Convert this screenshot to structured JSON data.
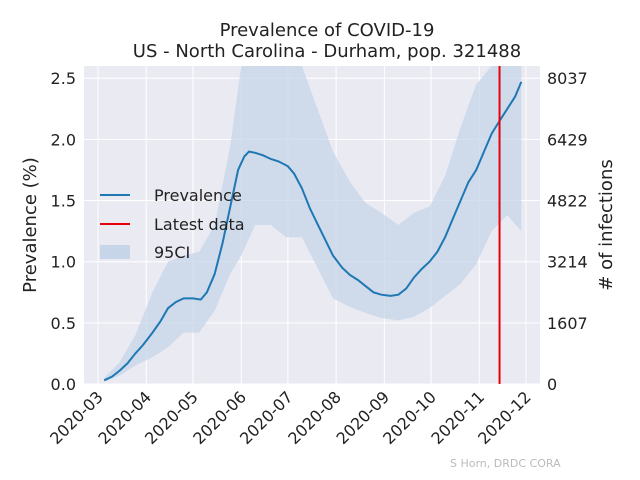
{
  "chart_data": {
    "type": "line",
    "title": "Prevalence of COVID-19",
    "subtitle": "US - North Carolina - Durham, pop. 321488",
    "ylabel": "Prevalence (%)",
    "y2label": "# of infections",
    "ylim": [
      0,
      2.6
    ],
    "yticks": [
      "0.0",
      "0.5",
      "1.0",
      "1.5",
      "2.0",
      "2.5"
    ],
    "y2ticks": [
      "0",
      "1607",
      "3214",
      "4822",
      "6429",
      "8037"
    ],
    "xticks": [
      "2020-03",
      "2020-04",
      "2020-05",
      "2020-06",
      "2020-07",
      "2020-08",
      "2020-09",
      "2020-10",
      "2020-11",
      "2020-12"
    ],
    "grid": true,
    "legend": {
      "placement": "center-left",
      "entries": [
        "Prevalence",
        "Latest data",
        "95CI"
      ]
    },
    "latest_data": "2020-11-14",
    "credit": "S Horn, DRDC CORA",
    "colors": {
      "line": "#1f77b4",
      "latest": "#e8000b",
      "ci": "#c6d6e8",
      "bg": "#eaeaf2",
      "grid": "#ffffff"
    },
    "series": [
      {
        "name": "Prevalence",
        "x": [
          "2020-03-05",
          "2020-03-10",
          "2020-03-15",
          "2020-03-20",
          "2020-03-25",
          "2020-03-30",
          "2020-04-05",
          "2020-04-10",
          "2020-04-15",
          "2020-04-20",
          "2020-04-25",
          "2020-05-01",
          "2020-05-06",
          "2020-05-10",
          "2020-05-15",
          "2020-05-20",
          "2020-05-25",
          "2020-05-30",
          "2020-06-03",
          "2020-06-06",
          "2020-06-10",
          "2020-06-15",
          "2020-06-20",
          "2020-06-25",
          "2020-07-01",
          "2020-07-05",
          "2020-07-10",
          "2020-07-15",
          "2020-07-20",
          "2020-07-25",
          "2020-07-30",
          "2020-08-05",
          "2020-08-10",
          "2020-08-15",
          "2020-08-20",
          "2020-08-25",
          "2020-08-30",
          "2020-09-05",
          "2020-09-10",
          "2020-09-15",
          "2020-09-20",
          "2020-09-25",
          "2020-09-30",
          "2020-10-05",
          "2020-10-10",
          "2020-10-15",
          "2020-10-20",
          "2020-10-25",
          "2020-10-30",
          "2020-11-04",
          "2020-11-09",
          "2020-11-14",
          "2020-11-19",
          "2020-11-24",
          "2020-11-28"
        ],
        "y": [
          0.03,
          0.06,
          0.11,
          0.17,
          0.25,
          0.32,
          0.42,
          0.51,
          0.62,
          0.67,
          0.7,
          0.7,
          0.69,
          0.75,
          0.9,
          1.15,
          1.45,
          1.75,
          1.86,
          1.9,
          1.89,
          1.87,
          1.84,
          1.82,
          1.78,
          1.72,
          1.6,
          1.44,
          1.31,
          1.18,
          1.05,
          0.95,
          0.89,
          0.85,
          0.8,
          0.75,
          0.73,
          0.72,
          0.73,
          0.78,
          0.87,
          0.94,
          1.0,
          1.08,
          1.2,
          1.35,
          1.5,
          1.65,
          1.75,
          1.9,
          2.05,
          2.15,
          2.25,
          2.35,
          2.47
        ]
      },
      {
        "name": "95CI",
        "x": [
          "2020-03-05",
          "2020-03-15",
          "2020-03-25",
          "2020-04-05",
          "2020-04-15",
          "2020-04-25",
          "2020-05-05",
          "2020-05-15",
          "2020-05-25",
          "2020-06-01",
          "2020-06-10",
          "2020-06-20",
          "2020-06-30",
          "2020-07-10",
          "2020-07-20",
          "2020-07-30",
          "2020-08-10",
          "2020-08-20",
          "2020-08-30",
          "2020-09-10",
          "2020-09-20",
          "2020-09-30",
          "2020-10-10",
          "2020-10-20",
          "2020-10-30",
          "2020-11-09",
          "2020-11-19",
          "2020-11-28"
        ],
        "lower": [
          0.02,
          0.07,
          0.15,
          0.22,
          0.3,
          0.42,
          0.42,
          0.6,
          0.9,
          1.05,
          1.3,
          1.3,
          1.2,
          1.2,
          0.95,
          0.7,
          0.63,
          0.58,
          0.54,
          0.52,
          0.55,
          0.62,
          0.72,
          0.82,
          0.98,
          1.25,
          1.38,
          1.25
        ],
        "upper": [
          0.05,
          0.18,
          0.4,
          0.75,
          1.0,
          1.05,
          1.08,
          1.3,
          1.95,
          2.6,
          2.6,
          2.6,
          2.6,
          2.6,
          2.25,
          1.9,
          1.65,
          1.48,
          1.4,
          1.3,
          1.4,
          1.45,
          1.7,
          2.1,
          2.45,
          2.6,
          2.6,
          2.6
        ]
      }
    ]
  }
}
